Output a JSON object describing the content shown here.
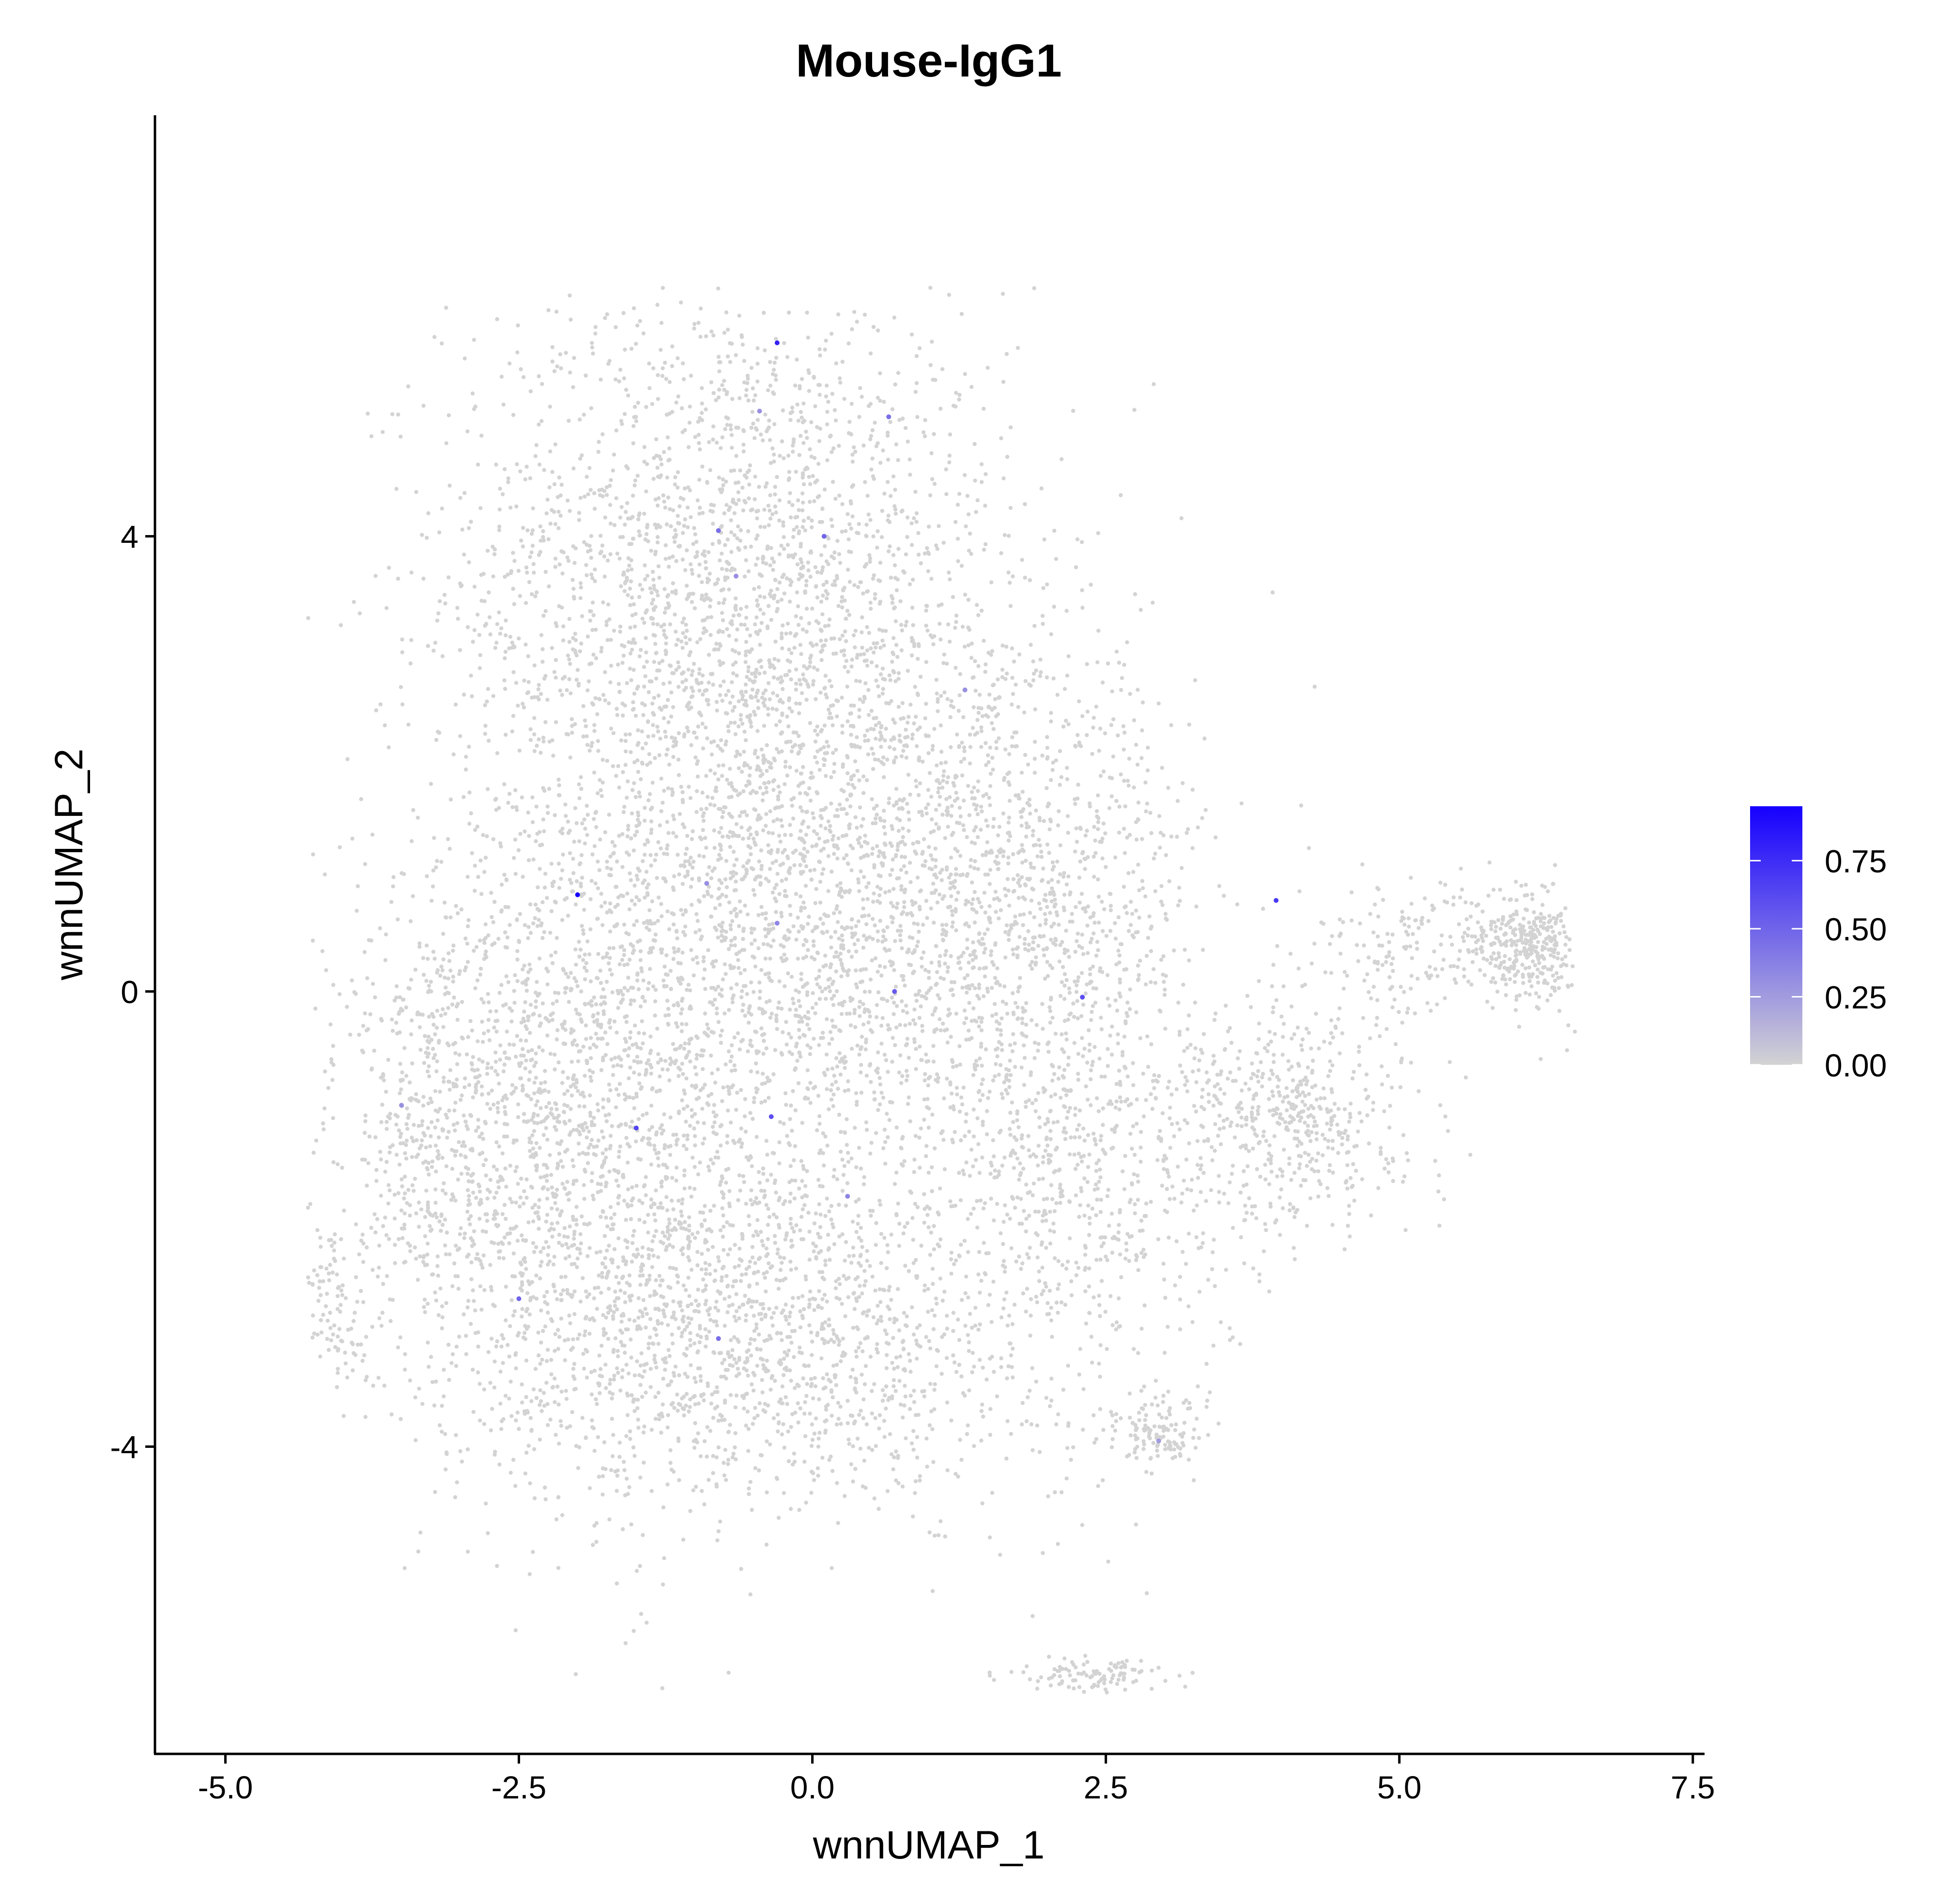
{
  "chart_data": {
    "type": "scatter",
    "title": "Mouse-IgG1",
    "xlabel": "wnnUMAP_1",
    "ylabel": "wnnUMAP_2",
    "xlim": [
      -5.6,
      7.6
    ],
    "ylim": [
      -6.7,
      7.7
    ],
    "xticks": [
      -5.0,
      -2.5,
      0.0,
      2.5,
      5.0,
      7.5
    ],
    "xtick_labels": [
      "-5.0",
      "-2.5",
      "0.0",
      "2.5",
      "5.0",
      "7.5"
    ],
    "yticks": [
      -4,
      0,
      4
    ],
    "ytick_labels": [
      "-4",
      "0",
      "4"
    ],
    "grid": false,
    "point_color_low": "#d3d3d3",
    "point_color_high": "#1600ff",
    "color_scale": {
      "min": 0.0,
      "max": 0.95,
      "ticks": [
        0.0,
        0.25,
        0.5,
        0.75
      ],
      "tick_labels": [
        "0.00",
        "0.25",
        "0.50",
        "0.75"
      ],
      "position": "right"
    },
    "regions": [
      {
        "name": "main-upper",
        "cx": -0.7,
        "cy": 3.6,
        "sx": 1.2,
        "sy": 1.3,
        "weight": 26
      },
      {
        "name": "main-left",
        "cx": -2.2,
        "cy": -1.2,
        "sx": 0.9,
        "sy": 1.4,
        "weight": 20
      },
      {
        "name": "main-center",
        "cx": -0.3,
        "cy": 0.6,
        "sx": 1.0,
        "sy": 1.4,
        "weight": 22
      },
      {
        "name": "main-lower",
        "cx": -0.4,
        "cy": -3.0,
        "sx": 1.2,
        "sy": 0.8,
        "weight": 18
      },
      {
        "name": "main-right",
        "cx": 1.7,
        "cy": 0.8,
        "sx": 0.8,
        "sy": 1.1,
        "weight": 14
      },
      {
        "name": "lower-right-tail",
        "cx": 2.3,
        "cy": -1.6,
        "sx": 0.6,
        "sy": 1.0,
        "weight": 7
      },
      {
        "name": "arm-mid",
        "cx": 4.1,
        "cy": -1.1,
        "sx": 0.5,
        "sy": 0.5,
        "weight": 6
      },
      {
        "name": "arm-far",
        "cx": 6.1,
        "cy": 0.4,
        "sx": 0.25,
        "sy": 0.25,
        "weight": 4
      },
      {
        "name": "arm-bridge",
        "cx": 5.2,
        "cy": 0.4,
        "sx": 0.5,
        "sy": 0.3,
        "weight": 2
      },
      {
        "name": "cluster-bottom",
        "cx": 2.95,
        "cy": -3.9,
        "sx": 0.18,
        "sy": 0.16,
        "weight": 1.5
      },
      {
        "name": "cluster-tail",
        "cx": 2.35,
        "cy": -6.0,
        "sx": 0.35,
        "sy": 0.08,
        "weight": 1.2
      },
      {
        "name": "left-edge",
        "cx": -4.1,
        "cy": -2.8,
        "sx": 0.2,
        "sy": 0.3,
        "weight": 1.2
      },
      {
        "name": "left-flank",
        "cx": -3.3,
        "cy": -1.2,
        "sx": 0.35,
        "sy": 0.8,
        "weight": 3
      }
    ],
    "expressing_cells": [
      {
        "x": -0.3,
        "y": 5.7,
        "v": 0.8
      },
      {
        "x": -2.0,
        "y": 0.85,
        "v": 0.95
      },
      {
        "x": 3.95,
        "y": 0.8,
        "v": 0.7
      },
      {
        "x": 0.7,
        "y": 0.0,
        "v": 0.55
      },
      {
        "x": 2.3,
        "y": -0.05,
        "v": 0.6
      },
      {
        "x": -1.5,
        "y": -1.2,
        "v": 0.65
      },
      {
        "x": -0.35,
        "y": -1.1,
        "v": 0.6
      },
      {
        "x": 0.1,
        "y": 4.0,
        "v": 0.5
      },
      {
        "x": -0.8,
        "y": 4.05,
        "v": 0.45
      },
      {
        "x": 0.65,
        "y": 5.05,
        "v": 0.45
      },
      {
        "x": -2.5,
        "y": -2.7,
        "v": 0.5
      },
      {
        "x": -0.8,
        "y": -3.05,
        "v": 0.45
      },
      {
        "x": -0.3,
        "y": 0.6,
        "v": 0.35
      },
      {
        "x": -0.9,
        "y": 0.95,
        "v": 0.3
      },
      {
        "x": -3.5,
        "y": -1.0,
        "v": 0.3
      },
      {
        "x": 1.3,
        "y": 2.65,
        "v": 0.3
      },
      {
        "x": 0.3,
        "y": -1.8,
        "v": 0.35
      },
      {
        "x": -0.45,
        "y": 5.1,
        "v": 0.3
      },
      {
        "x": -0.65,
        "y": 3.65,
        "v": 0.3
      },
      {
        "x": 2.95,
        "y": -3.95,
        "v": 0.25
      }
    ]
  }
}
